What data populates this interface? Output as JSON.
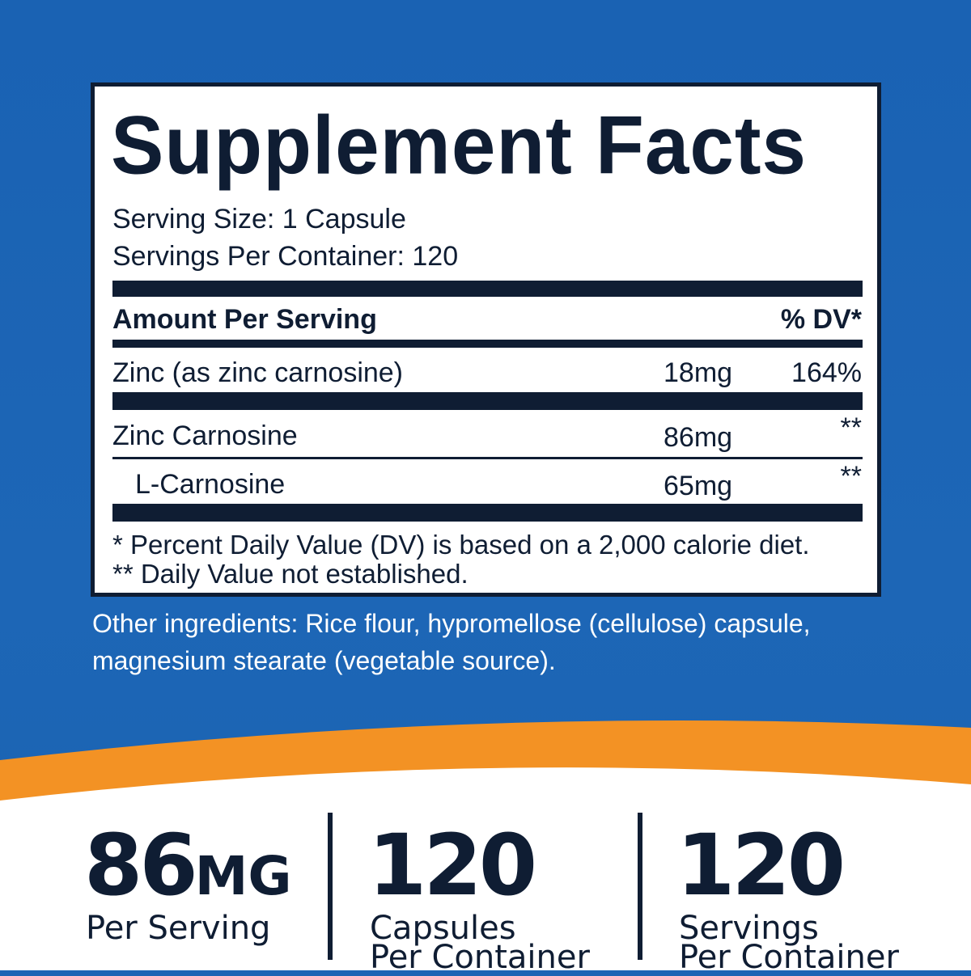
{
  "panel": {
    "title": "Supplement Facts",
    "serving_size": "Serving Size: 1 Capsule",
    "servings_per_container": "Servings Per Container: 120",
    "amount_header": "Amount Per Serving",
    "dv_header": "% DV*",
    "rows": [
      {
        "name": "Zinc (as zinc carnosine)",
        "amount": "18mg",
        "dv": "164%"
      },
      {
        "name": "Zinc Carnosine",
        "amount": "86mg",
        "dv": "**"
      },
      {
        "name": "L-Carnosine",
        "amount": "65mg",
        "dv": "**"
      }
    ],
    "footnote_1": "* Percent Daily Value (DV) is based on a 2,000 calorie diet.",
    "footnote_2": "** Daily Value not established."
  },
  "other_ingredients": {
    "line_1": "Other ingredients: Rice flour, hypromellose (cellulose) capsule,",
    "line_2": "magnesium stearate (vegetable source)."
  },
  "stats": [
    {
      "value": "86",
      "unit": "MG",
      "label_1": "Per Serving",
      "label_2": ""
    },
    {
      "value": "120",
      "unit": "",
      "label_1": "Capsules",
      "label_2": "Per Container"
    },
    {
      "value": "120",
      "unit": "",
      "label_1": "Servings",
      "label_2": "Per Container"
    }
  ],
  "colors": {
    "background_blue": "#1c64b4",
    "accent_orange": "#f39224",
    "text_navy": "#0f1d33",
    "panel_white": "#ffffff"
  }
}
